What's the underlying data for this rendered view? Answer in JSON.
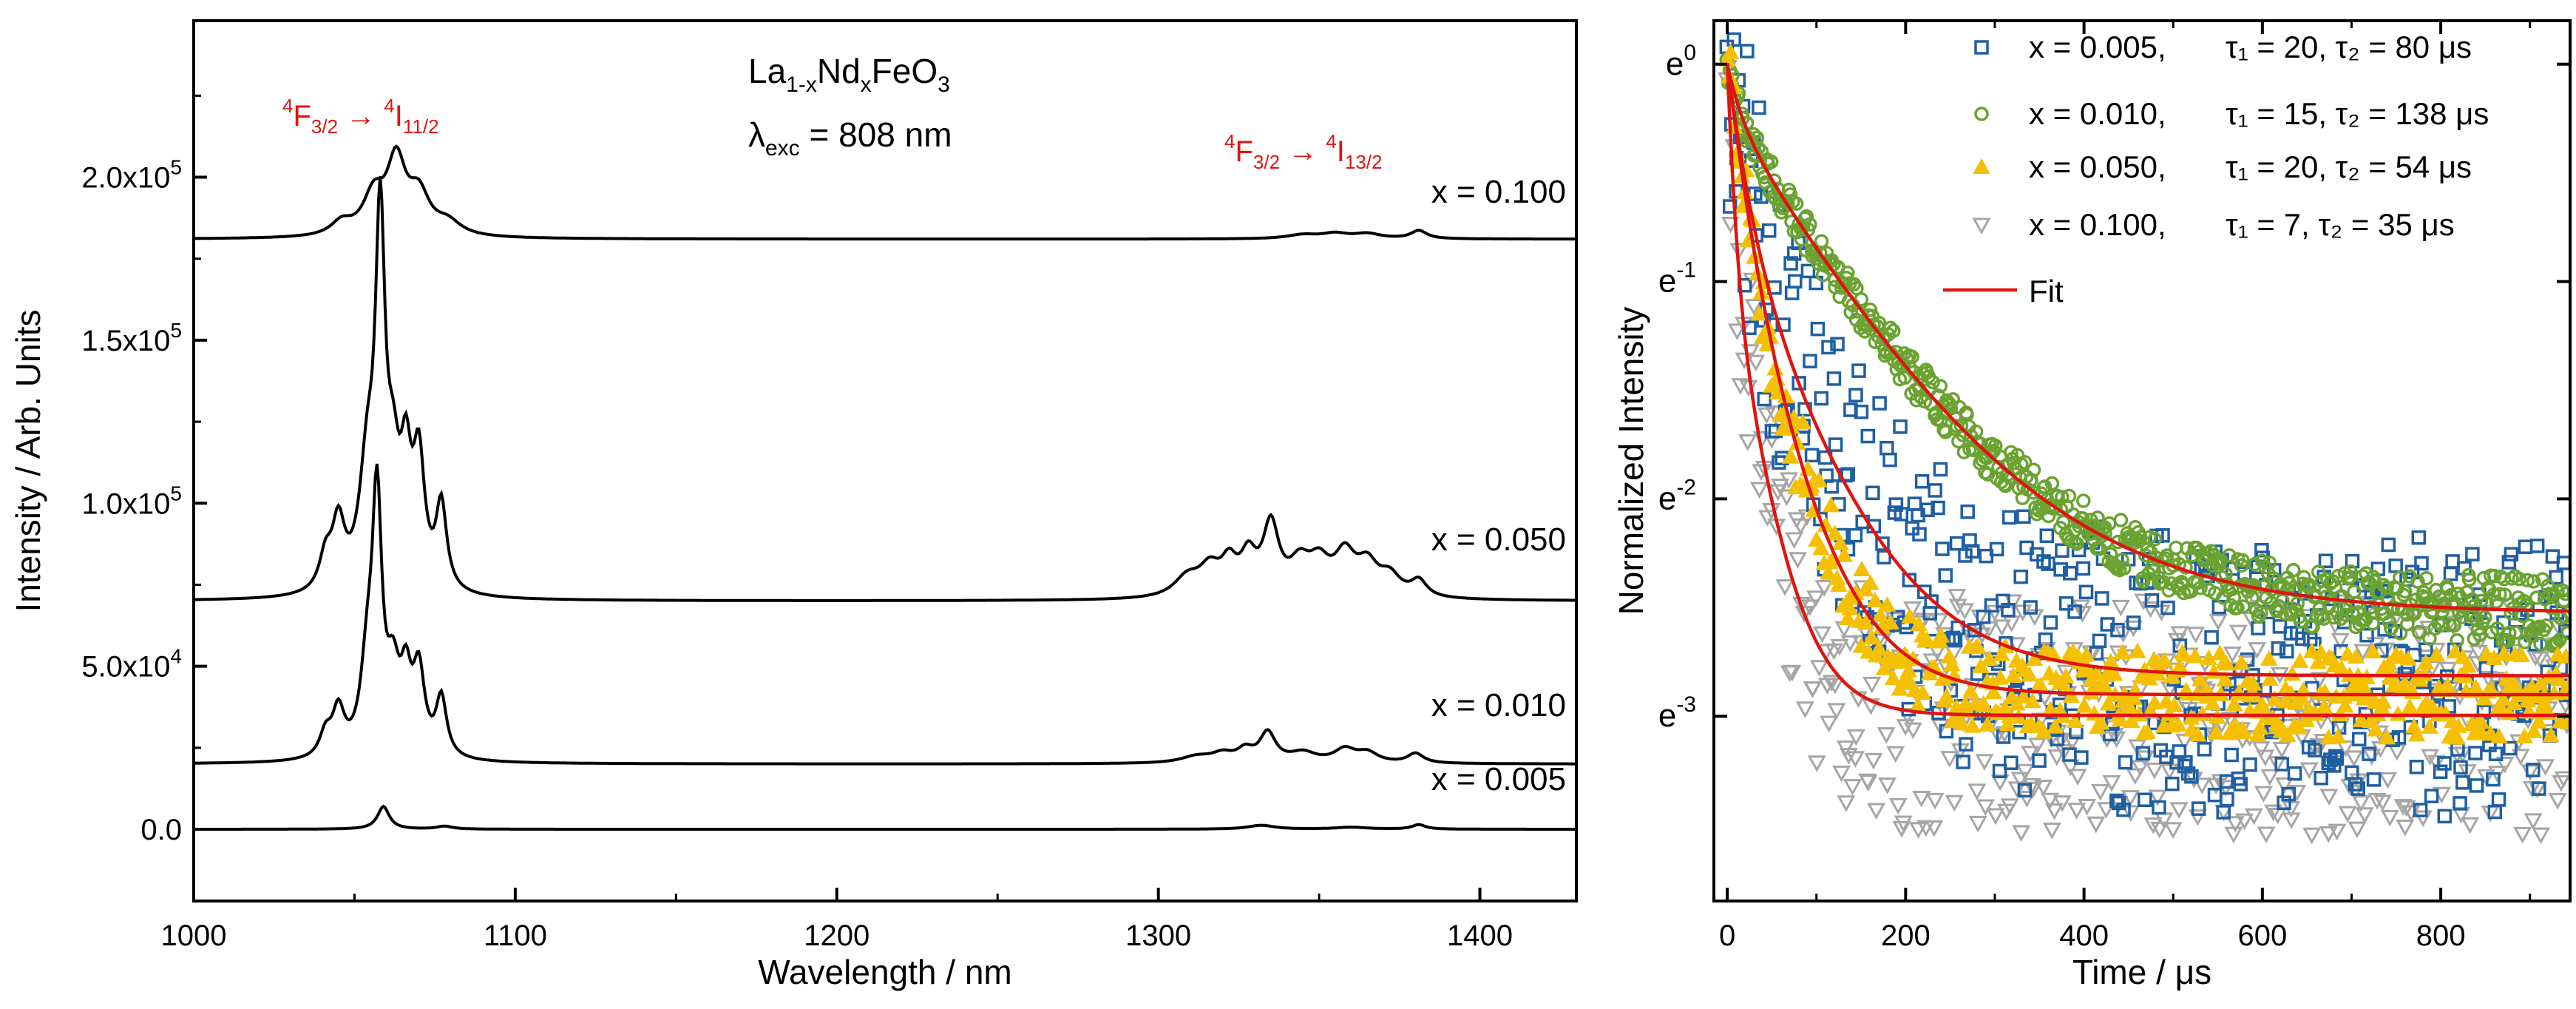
{
  "chart_data": [
    {
      "type": "line",
      "xlabel": "Wavelength / nm",
      "ylabel": "Intensity / Arb. Units",
      "xlim": [
        1000,
        1430
      ],
      "ylim": [
        -22000,
        248000
      ],
      "xticks": [
        {
          "value": 1000,
          "label": "1000"
        },
        {
          "value": 1100,
          "label": "1100"
        },
        {
          "value": 1200,
          "label": "1200"
        },
        {
          "value": 1300,
          "label": "1300"
        },
        {
          "value": 1400,
          "label": "1400"
        }
      ],
      "yticks": [
        {
          "value": 0,
          "label": "0.0"
        },
        {
          "value": 50000,
          "label": "5.0x10",
          "exp": "4"
        },
        {
          "value": 100000,
          "label": "1.0x10",
          "exp": "5"
        },
        {
          "value": 150000,
          "label": "1.5x10",
          "exp": "5"
        },
        {
          "value": 200000,
          "label": "2.0x10",
          "exp": "5"
        }
      ],
      "compound": {
        "base1": "La",
        "sub1": "1-x",
        "base2": "Nd",
        "sub2": "x",
        "base3": "FeO",
        "sub3": "3"
      },
      "excitation": {
        "symbol": "λ",
        "sub": "exc",
        "text": " = 808 nm"
      },
      "transitions": [
        {
          "sup_a": "4",
          "base_a": "F",
          "sub_a": "3/2",
          "arrow": " → ",
          "sup_b": "4",
          "base_b": "I",
          "sub_b": "11/2"
        },
        {
          "sup_a": "4",
          "base_a": "F",
          "sub_a": "3/2",
          "arrow": " → ",
          "sup_b": "4",
          "base_b": "I",
          "sub_b": "13/2"
        }
      ],
      "series": [
        {
          "name": "x = 0.005",
          "offset": 0,
          "peaks": [
            [
              1059,
              7000,
              2.2
            ],
            [
              1078,
              900,
              3
            ],
            [
              1332,
              1200,
              5
            ],
            [
              1381,
              1400,
              2.5
            ],
            [
              1360,
              600,
              6
            ]
          ]
        },
        {
          "name": "x = 0.010",
          "offset": 20000,
          "peaks": [
            [
              1041,
              7000,
              2.2
            ],
            [
              1045,
              14000,
              2.3
            ],
            [
              1054,
              25000,
              2.5
            ],
            [
              1057,
              75000,
              1.8
            ],
            [
              1062,
              22000,
              2.5
            ],
            [
              1066,
              20000,
              2
            ],
            [
              1070,
              25000,
              2.2
            ],
            [
              1077,
              18000,
              2
            ],
            [
              1312,
              2000,
              6
            ],
            [
              1320,
              2500,
              4
            ],
            [
              1327,
              3500,
              3
            ],
            [
              1334,
              9000,
              3
            ],
            [
              1345,
              3000,
              5
            ],
            [
              1358,
              4000,
              4
            ],
            [
              1365,
              3000,
              4
            ],
            [
              1380,
              3000,
              3
            ]
          ]
        },
        {
          "name": "x = 0.050",
          "offset": 70000,
          "peaks": [
            [
              1041,
              10000,
              2.3
            ],
            [
              1045,
              20000,
              2.4
            ],
            [
              1054,
              35000,
              3
            ],
            [
              1058,
              105000,
              1.8
            ],
            [
              1062,
              30000,
              2.5
            ],
            [
              1066,
              32000,
              2
            ],
            [
              1070,
              38000,
              2.2
            ],
            [
              1077,
              26000,
              2
            ],
            [
              1309,
              6000,
              5
            ],
            [
              1316,
              8000,
              4
            ],
            [
              1322,
              9000,
              3
            ],
            [
              1328,
              11000,
              3
            ],
            [
              1335,
              21000,
              3
            ],
            [
              1344,
              9000,
              4
            ],
            [
              1350,
              9000,
              4
            ],
            [
              1358,
              12000,
              4
            ],
            [
              1365,
              9000,
              4
            ],
            [
              1372,
              6000,
              4
            ],
            [
              1381,
              5000,
              3
            ]
          ]
        },
        {
          "name": "x = 0.100",
          "offset": 181000,
          "peaks": [
            [
              1046,
              4000,
              4
            ],
            [
              1056,
              12000,
              4
            ],
            [
              1063,
              22000,
              3.5
            ],
            [
              1070,
              12000,
              4
            ],
            [
              1079,
              4000,
              5
            ],
            [
              1345,
              1200,
              6
            ],
            [
              1355,
              1500,
              5
            ],
            [
              1365,
              1500,
              5
            ],
            [
              1381,
              2500,
              3
            ]
          ]
        }
      ]
    },
    {
      "type": "scatter",
      "xlabel": "Time / μs",
      "ylabel": "Normalized Intensity",
      "xlim": [
        -15,
        945
      ],
      "ylim": [
        -3.85,
        0.2
      ],
      "yscale": "log_e",
      "xticks": [
        {
          "value": 0,
          "label": "0"
        },
        {
          "value": 200,
          "label": "200"
        },
        {
          "value": 400,
          "label": "400"
        },
        {
          "value": 600,
          "label": "600"
        },
        {
          "value": 800,
          "label": "800"
        }
      ],
      "yticks": [
        {
          "value": 0,
          "base": "e",
          "exp": "0"
        },
        {
          "value": -1,
          "base": "e",
          "exp": "-1"
        },
        {
          "value": -2,
          "base": "e",
          "exp": "-2"
        },
        {
          "value": -3,
          "base": "e",
          "exp": "-3"
        }
      ],
      "legend_position": "top-right",
      "series": [
        {
          "name": "x = 0.005,",
          "tau_text": "τ₁ = 20, τ₂ = 80 μs",
          "marker": "square",
          "color": "#1f5fa3",
          "fit": {
            "a1": 0.5,
            "t1": 20,
            "a2": 0.44,
            "t2": 80,
            "c": 0.06
          },
          "noise": 0.65,
          "floor": -3.7
        },
        {
          "name": "x = 0.010,",
          "tau_text": "τ₁ = 15, τ₂ = 138 μs",
          "marker": "circle",
          "color": "#6aa331",
          "fit": {
            "a1": 0.2,
            "t1": 15,
            "a2": 0.72,
            "t2": 138,
            "c": 0.08
          },
          "noise": 0.08,
          "floor": -3.2
        },
        {
          "name": "x = 0.050,",
          "tau_text": "τ₁ = 20, τ₂ = 54 μs",
          "marker": "triangle",
          "color": "#f5c000",
          "fit": {
            "a1": 0.5,
            "t1": 20,
            "a2": 0.45,
            "t2": 54,
            "c": 0.055
          },
          "noise": 0.2,
          "floor": -3.3
        },
        {
          "name": "x = 0.100,",
          "tau_text": "τ₁ = 7, τ₂ = 35 μs",
          "marker": "triangle-down",
          "color": "#a6a6a6",
          "fit": {
            "a1": 0.6,
            "t1": 7,
            "a2": 0.35,
            "t2": 35,
            "c": 0.05
          },
          "noise": 0.55,
          "floor": -3.8
        }
      ],
      "fit_legend": {
        "name": "Fit",
        "color": "#e0140f"
      }
    }
  ]
}
